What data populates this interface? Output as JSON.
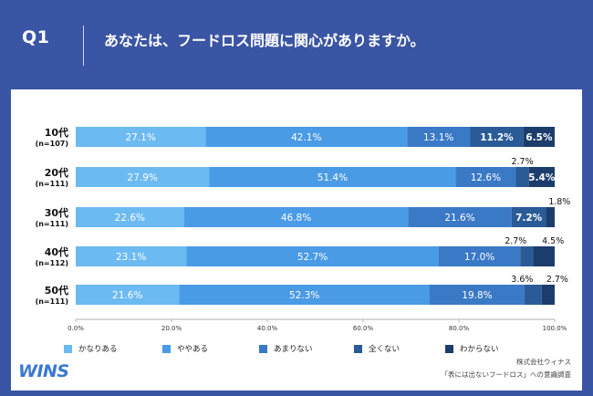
{
  "header": {
    "q_label": "Q1",
    "question": "あなたは、フードロス問題に関心がありますか。"
  },
  "colors": {
    "background": "#3a55a3",
    "segments": [
      "#6cbaf2",
      "#4a9be6",
      "#3a79c6",
      "#2a5b97",
      "#1c3d6b"
    ]
  },
  "chart_data": {
    "type": "bar",
    "orientation": "horizontal",
    "stacked": true,
    "categories": [
      {
        "label": "10代",
        "n": "(n=107)"
      },
      {
        "label": "20代",
        "n": "(n=111)"
      },
      {
        "label": "30代",
        "n": "(n=111)"
      },
      {
        "label": "40代",
        "n": "(n=112)"
      },
      {
        "label": "50代",
        "n": "(n=111)"
      }
    ],
    "series": [
      {
        "name": "かなりある",
        "values": [
          27.1,
          27.9,
          22.6,
          23.1,
          21.6
        ]
      },
      {
        "name": "ややある",
        "values": [
          42.1,
          51.4,
          46.8,
          52.7,
          52.3
        ]
      },
      {
        "name": "あまりない",
        "values": [
          13.1,
          12.6,
          21.6,
          17.0,
          19.8
        ]
      },
      {
        "name": "全くない",
        "values": [
          11.2,
          2.7,
          7.2,
          2.7,
          3.6
        ]
      },
      {
        "name": "わからない",
        "values": [
          6.5,
          5.4,
          1.8,
          4.5,
          2.7
        ]
      }
    ],
    "xlim": [
      0,
      100
    ],
    "xticks": [
      "0.0%",
      "20.0%",
      "40.0%",
      "60.0%",
      "80.0%",
      "100.0%"
    ],
    "legend_position": "bottom",
    "grid": false
  },
  "footer": {
    "logo": "WINS",
    "credit_line1": "株式会社ウィナス",
    "credit_line2": "「表には出ないフードロス」への意識調査"
  }
}
